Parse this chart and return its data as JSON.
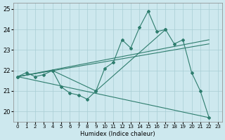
{
  "xlabel": "Humidex (Indice chaleur)",
  "xlim": [
    -0.5,
    23.5
  ],
  "ylim": [
    19.5,
    25.3
  ],
  "yticks": [
    20,
    21,
    22,
    23,
    24,
    25
  ],
  "xticks": [
    0,
    1,
    2,
    3,
    4,
    5,
    6,
    7,
    8,
    9,
    10,
    11,
    12,
    13,
    14,
    15,
    16,
    17,
    18,
    19,
    20,
    21,
    22,
    23
  ],
  "bg_color": "#cde8ee",
  "grid_color": "#a8cdd4",
  "line_color": "#2e7d6e",
  "main_x": [
    0,
    1,
    2,
    3,
    4,
    5,
    6,
    7,
    8,
    9,
    10,
    11,
    12,
    13,
    14,
    15,
    16,
    17,
    18,
    19,
    20,
    21,
    22
  ],
  "main_y": [
    21.7,
    21.9,
    21.7,
    21.8,
    22.0,
    21.2,
    20.9,
    20.8,
    20.6,
    21.0,
    22.1,
    22.4,
    23.5,
    23.1,
    24.1,
    24.9,
    23.9,
    24.0,
    23.3,
    23.5,
    21.9,
    21.0,
    19.7
  ],
  "line2_x": [
    0,
    4,
    9,
    17
  ],
  "line2_y": [
    21.7,
    22.0,
    21.0,
    24.0
  ],
  "trendlines": [
    {
      "x": [
        0,
        22
      ],
      "y": [
        21.7,
        19.7
      ]
    },
    {
      "x": [
        0,
        22
      ],
      "y": [
        21.7,
        23.3
      ]
    },
    {
      "x": [
        0,
        22
      ],
      "y": [
        21.7,
        23.5
      ]
    }
  ]
}
